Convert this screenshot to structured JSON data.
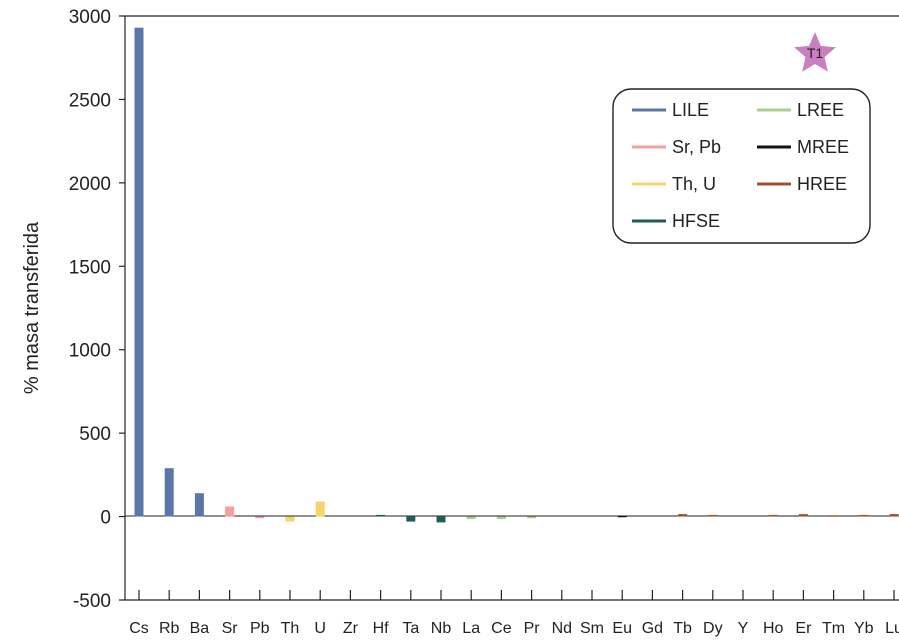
{
  "chart_data": {
    "type": "bar",
    "title": "",
    "ylabel": "% masa transferida",
    "xlabel": "",
    "ylim": [
      -500,
      3000
    ],
    "yticks": [
      -500,
      0,
      500,
      1000,
      1500,
      2000,
      2500,
      3000
    ],
    "ytick_labels": [
      "-500",
      "0",
      "500",
      "1000",
      "1500",
      "2000",
      "2500",
      "3000"
    ],
    "grid": false,
    "legend_placement": "top-right",
    "badge": "T1",
    "badge_color": "#c97fc0",
    "categories": [
      "Cs",
      "Rb",
      "Ba",
      "Sr",
      "Pb",
      "Th",
      "U",
      "Zr",
      "Hf",
      "Ta",
      "Nb",
      "La",
      "Ce",
      "Pr",
      "Nd",
      "Sm",
      "Eu",
      "Gd",
      "Tb",
      "Dy",
      "Y",
      "Ho",
      "Er",
      "Tm",
      "Yb",
      "Lu"
    ],
    "values": [
      2930,
      290,
      140,
      60,
      -10,
      -30,
      90,
      0,
      10,
      -30,
      -35,
      -15,
      -15,
      -10,
      0,
      0,
      5,
      0,
      15,
      10,
      0,
      10,
      15,
      8,
      10,
      15
    ],
    "groups": [
      "LILE",
      "LILE",
      "LILE",
      "Sr, Pb",
      "Sr, Pb",
      "Th, U",
      "Th, U",
      "HFSE",
      "HFSE",
      "HFSE",
      "HFSE",
      "LREE",
      "LREE",
      "LREE",
      "LREE",
      "MREE",
      "MREE",
      "MREE",
      "HREE",
      "HREE",
      "HREE",
      "HREE",
      "HREE",
      "HREE",
      "HREE",
      "HREE"
    ],
    "legend": [
      {
        "name": "LILE",
        "color": "#5b77a8"
      },
      {
        "name": "LREE",
        "color": "#a9d18e"
      },
      {
        "name": "Sr, Pb",
        "color": "#f4a0a0"
      },
      {
        "name": "MREE",
        "color": "#111111"
      },
      {
        "name": "Th, U",
        "color": "#f2d66b"
      },
      {
        "name": "HREE",
        "color": "#a0522d"
      },
      {
        "name": "HFSE",
        "color": "#1e5e57"
      }
    ]
  }
}
